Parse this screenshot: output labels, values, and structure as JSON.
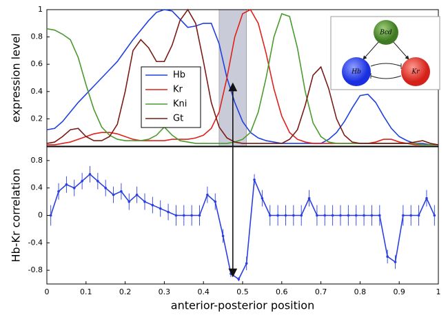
{
  "chart_data": [
    {
      "type": "line",
      "y_label": "expression level",
      "xlim": [
        0,
        1
      ],
      "ylim": [
        0,
        1
      ],
      "yticks": [
        0.2,
        0.4,
        0.6,
        0.8,
        1
      ],
      "highlight": [
        0.44,
        0.51
      ],
      "x": [
        0,
        0.02,
        0.04,
        0.06,
        0.08,
        0.1,
        0.12,
        0.14,
        0.16,
        0.18,
        0.2,
        0.22,
        0.24,
        0.26,
        0.28,
        0.3,
        0.32,
        0.34,
        0.36,
        0.38,
        0.4,
        0.42,
        0.44,
        0.46,
        0.48,
        0.5,
        0.52,
        0.54,
        0.56,
        0.58,
        0.6,
        0.62,
        0.64,
        0.66,
        0.68,
        0.7,
        0.72,
        0.74,
        0.76,
        0.78,
        0.8,
        0.82,
        0.84,
        0.86,
        0.88,
        0.9,
        0.92,
        0.94,
        0.96,
        0.98,
        1
      ],
      "series": [
        {
          "name": "Hb",
          "color": "#1f3fe0",
          "values": [
            0.12,
            0.13,
            0.18,
            0.25,
            0.32,
            0.38,
            0.44,
            0.5,
            0.56,
            0.62,
            0.7,
            0.78,
            0.85,
            0.92,
            0.98,
            1,
            0.99,
            0.93,
            0.87,
            0.88,
            0.9,
            0.9,
            0.75,
            0.5,
            0.32,
            0.18,
            0.1,
            0.06,
            0.04,
            0.03,
            0.02,
            0.02,
            0.02,
            0.02,
            0.02,
            0.02,
            0.05,
            0.1,
            0.18,
            0.28,
            0.37,
            0.38,
            0.32,
            0.22,
            0.13,
            0.07,
            0.04,
            0.02,
            0.02,
            0.01,
            0.01
          ]
        },
        {
          "name": "Kr",
          "color": "#e0201a",
          "values": [
            0.01,
            0.01,
            0.02,
            0.03,
            0.05,
            0.07,
            0.09,
            0.1,
            0.1,
            0.09,
            0.07,
            0.05,
            0.04,
            0.04,
            0.04,
            0.04,
            0.05,
            0.05,
            0.05,
            0.06,
            0.08,
            0.13,
            0.25,
            0.5,
            0.8,
            0.97,
            1,
            0.9,
            0.68,
            0.42,
            0.22,
            0.1,
            0.05,
            0.03,
            0.02,
            0.02,
            0.02,
            0.02,
            0.02,
            0.02,
            0.02,
            0.02,
            0.03,
            0.05,
            0.05,
            0.03,
            0.02,
            0.01,
            0.01,
            0.01,
            0.01
          ]
        },
        {
          "name": "Kni",
          "color": "#4a9a2e",
          "values": [
            0.86,
            0.85,
            0.82,
            0.78,
            0.65,
            0.45,
            0.27,
            0.14,
            0.08,
            0.05,
            0.04,
            0.04,
            0.04,
            0.05,
            0.08,
            0.14,
            0.08,
            0.04,
            0.03,
            0.02,
            0.02,
            0.02,
            0.02,
            0.02,
            0.03,
            0.05,
            0.1,
            0.25,
            0.5,
            0.8,
            0.97,
            0.95,
            0.72,
            0.4,
            0.17,
            0.07,
            0.03,
            0.02,
            0.02,
            0.02,
            0.02,
            0.02,
            0.02,
            0.02,
            0.02,
            0.02,
            0.02,
            0.02,
            0.01,
            0.01,
            0.01
          ]
        },
        {
          "name": "Gt",
          "color": "#7a1a14",
          "values": [
            0.02,
            0.03,
            0.07,
            0.12,
            0.13,
            0.07,
            0.04,
            0.04,
            0.07,
            0.16,
            0.4,
            0.7,
            0.78,
            0.72,
            0.62,
            0.62,
            0.74,
            0.92,
            1,
            0.9,
            0.62,
            0.32,
            0.14,
            0.06,
            0.03,
            0.02,
            0.02,
            0.02,
            0.02,
            0.02,
            0.02,
            0.05,
            0.12,
            0.3,
            0.52,
            0.58,
            0.42,
            0.2,
            0.08,
            0.03,
            0.02,
            0.02,
            0.02,
            0.02,
            0.02,
            0.02,
            0.02,
            0.03,
            0.04,
            0.02,
            0.01
          ]
        }
      ]
    },
    {
      "type": "line",
      "y_label": "Hb-Kr correlation",
      "x_label": "anterior-posterior position",
      "xlim": [
        0,
        1
      ],
      "ylim": [
        -1,
        1
      ],
      "xticks": [
        0,
        0.1,
        0.2,
        0.3,
        0.4,
        0.5,
        0.6,
        0.7,
        0.8,
        0.9,
        1
      ],
      "yticks": [
        -0.8,
        -0.4,
        0,
        0.4,
        0.8
      ],
      "x": [
        0.01,
        0.03,
        0.05,
        0.07,
        0.09,
        0.11,
        0.13,
        0.15,
        0.17,
        0.19,
        0.21,
        0.23,
        0.25,
        0.27,
        0.29,
        0.31,
        0.33,
        0.35,
        0.37,
        0.39,
        0.41,
        0.43,
        0.45,
        0.47,
        0.49,
        0.51,
        0.53,
        0.55,
        0.57,
        0.59,
        0.61,
        0.63,
        0.65,
        0.67,
        0.69,
        0.71,
        0.73,
        0.75,
        0.77,
        0.79,
        0.81,
        0.83,
        0.85,
        0.87,
        0.89,
        0.91,
        0.93,
        0.95,
        0.97,
        0.99
      ],
      "series": [
        {
          "color": "#2a3fe0",
          "values": [
            0,
            0.35,
            0.45,
            0.4,
            0.5,
            0.6,
            0.5,
            0.4,
            0.3,
            0.35,
            0.2,
            0.3,
            0.2,
            0.15,
            0.1,
            0.05,
            0,
            0,
            0,
            0,
            0.3,
            0.2,
            -0.3,
            -0.85,
            -0.93,
            -0.7,
            0.52,
            0.25,
            0,
            0,
            0,
            0,
            0,
            0.25,
            0,
            0,
            0,
            0,
            0,
            0,
            0,
            0,
            0,
            -0.6,
            -0.68,
            0,
            0,
            0,
            0.25,
            0
          ],
          "errors": [
            0.15,
            0.12,
            0.12,
            0.12,
            0.12,
            0.12,
            0.12,
            0.12,
            0.12,
            0.12,
            0.12,
            0.12,
            0.12,
            0.12,
            0.12,
            0.12,
            0.15,
            0.15,
            0.15,
            0.15,
            0.12,
            0.12,
            0.1,
            0.05,
            0.03,
            0.1,
            0.08,
            0.12,
            0.15,
            0.15,
            0.15,
            0.15,
            0.15,
            0.12,
            0.15,
            0.15,
            0.15,
            0.15,
            0.15,
            0.15,
            0.15,
            0.15,
            0.15,
            0.1,
            0.1,
            0.15,
            0.15,
            0.15,
            0.12,
            0.15
          ]
        }
      ]
    }
  ],
  "inset": {
    "nodes": [
      "Bcd",
      "Hb",
      "Kr"
    ]
  }
}
